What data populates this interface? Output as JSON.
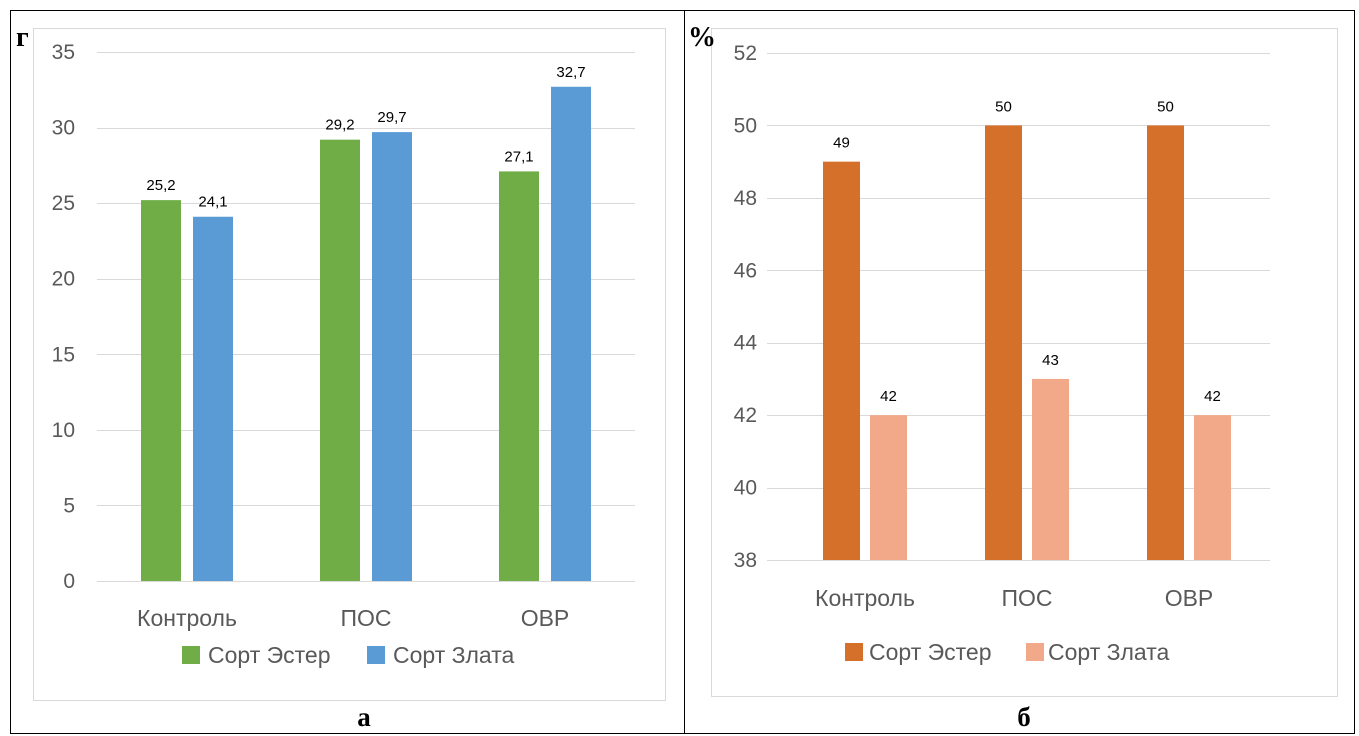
{
  "chart_data": [
    {
      "type": "bar",
      "panel_label": "а",
      "unit_label": "г",
      "categories": [
        "Контроль",
        "ПОС",
        "ОВР"
      ],
      "series": [
        {
          "name": "Сорт Эстер",
          "values": [
            25.2,
            29.2,
            27.1
          ],
          "labels": [
            "25,2",
            "29,2",
            "27,1"
          ],
          "color": "#70ad47"
        },
        {
          "name": "Сорт Злата",
          "values": [
            24.1,
            29.7,
            32.7
          ],
          "labels": [
            "24,1",
            "29,7",
            "32,7"
          ],
          "color": "#5b9bd5"
        }
      ],
      "ylim": [
        0,
        35
      ],
      "yticks": [
        0,
        5,
        10,
        15,
        20,
        25,
        30,
        35
      ],
      "ytick_labels": [
        "0",
        "5",
        "10",
        "15",
        "20",
        "25",
        "30",
        "35"
      ],
      "grid": true,
      "legend_position": "bottom"
    },
    {
      "type": "bar",
      "panel_label": "б",
      "unit_label": "%",
      "categories": [
        "Контроль",
        "ПОС",
        "ОВР"
      ],
      "series": [
        {
          "name": "Сорт Эстер",
          "values": [
            49,
            50,
            50
          ],
          "labels": [
            "49",
            "50",
            "50"
          ],
          "color": "#d4702a"
        },
        {
          "name": "Сорт Злата",
          "values": [
            42,
            43,
            42
          ],
          "labels": [
            "42",
            "43",
            "42"
          ],
          "color": "#f2a98a"
        }
      ],
      "ylim": [
        38,
        52
      ],
      "yticks": [
        38,
        40,
        42,
        44,
        46,
        48,
        50,
        52
      ],
      "ytick_labels": [
        "38",
        "40",
        "42",
        "44",
        "46",
        "48",
        "50",
        "52"
      ],
      "grid": true,
      "legend_position": "bottom"
    }
  ]
}
